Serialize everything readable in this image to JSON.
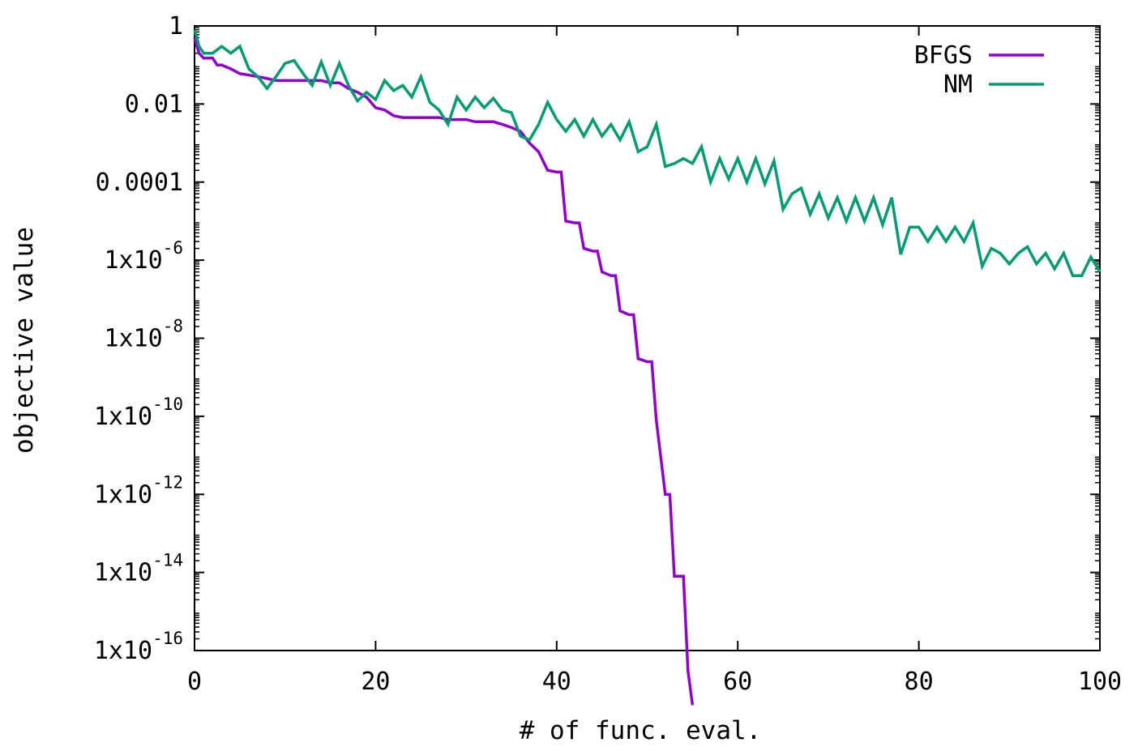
{
  "chart_data": {
    "type": "line",
    "xlabel": "# of func. eval.",
    "ylabel": "objective value",
    "xlim": [
      0,
      100
    ],
    "ylim_log10": [
      -16,
      0
    ],
    "yscale": "log",
    "grid": false,
    "legend_placement": "top-right",
    "x_ticks": [
      {
        "value": 0,
        "label": "0"
      },
      {
        "value": 20,
        "label": "20"
      },
      {
        "value": 40,
        "label": "40"
      },
      {
        "value": 60,
        "label": "60"
      },
      {
        "value": 80,
        "label": "80"
      },
      {
        "value": 100,
        "label": "100"
      }
    ],
    "y_ticks": [
      {
        "log10": 0,
        "label": "1",
        "base": "",
        "exp": ""
      },
      {
        "log10": -2,
        "label": "0.01",
        "base": "",
        "exp": ""
      },
      {
        "log10": -4,
        "label": "0.0001",
        "base": "",
        "exp": ""
      },
      {
        "log10": -6,
        "label": "",
        "base": "1x10",
        "exp": "-6"
      },
      {
        "log10": -8,
        "label": "",
        "base": "1x10",
        "exp": "-8"
      },
      {
        "log10": -10,
        "label": "",
        "base": "1x10",
        "exp": "-10"
      },
      {
        "log10": -12,
        "label": "",
        "base": "1x10",
        "exp": "-12"
      },
      {
        "log10": -14,
        "label": "",
        "base": "1x10",
        "exp": "-14"
      },
      {
        "log10": -16,
        "label": "",
        "base": "1x10",
        "exp": "-16"
      }
    ],
    "series": [
      {
        "name": "BFGS",
        "color": "#9400d3",
        "x": [
          0,
          0.5,
          1,
          2,
          2.5,
          3,
          4,
          5,
          6,
          7,
          8,
          9,
          10,
          11,
          12,
          13,
          14,
          15,
          16,
          17,
          18,
          19,
          20,
          21,
          22,
          23,
          24,
          25,
          26,
          27,
          28,
          29,
          30,
          31,
          32,
          33,
          34,
          35,
          36,
          37,
          38,
          39,
          40,
          40.5,
          41,
          42,
          42.5,
          43,
          44,
          44.5,
          45,
          46,
          46.5,
          47,
          48,
          48.5,
          49,
          50,
          50.5,
          51,
          52,
          52.5,
          53,
          54,
          54.5,
          55
        ],
        "y": [
          0.5,
          0.2,
          0.15,
          0.15,
          0.1,
          0.1,
          0.08,
          0.06,
          0.055,
          0.05,
          0.045,
          0.04,
          0.04,
          0.04,
          0.04,
          0.04,
          0.04,
          0.035,
          0.035,
          0.025,
          0.02,
          0.015,
          0.008,
          0.007,
          0.005,
          0.0045,
          0.0045,
          0.0045,
          0.0045,
          0.0045,
          0.004,
          0.004,
          0.004,
          0.0035,
          0.0035,
          0.0035,
          0.003,
          0.0025,
          0.002,
          0.001,
          0.0006,
          0.0002,
          0.00018,
          0.00018,
          1e-05,
          9e-06,
          9e-06,
          2e-06,
          1.7e-06,
          1.7e-06,
          5e-07,
          4e-07,
          4e-07,
          5e-08,
          4e-08,
          4e-08,
          3e-09,
          2.5e-09,
          2.5e-09,
          8e-11,
          1e-12,
          1e-12,
          8e-15,
          8e-15,
          3e-17,
          4e-18
        ]
      },
      {
        "name": "NM",
        "color": "#009e73",
        "x": [
          0,
          0.5,
          1,
          2,
          3,
          4,
          5,
          6,
          7,
          8,
          9,
          10,
          11,
          12,
          13,
          14,
          15,
          16,
          17,
          18,
          19,
          20,
          21,
          22,
          23,
          24,
          25,
          26,
          27,
          28,
          29,
          30,
          31,
          32,
          33,
          34,
          35,
          36,
          37,
          38,
          39,
          40,
          41,
          42,
          43,
          44,
          45,
          46,
          47,
          48,
          49,
          50,
          51,
          52,
          53,
          54,
          55,
          56,
          57,
          58,
          59,
          60,
          61,
          62,
          63,
          64,
          65,
          66,
          67,
          68,
          69,
          70,
          71,
          72,
          73,
          74,
          75,
          76,
          77,
          78,
          79,
          80,
          81,
          82,
          83,
          84,
          85,
          86,
          87,
          88,
          89,
          90,
          91,
          92,
          93,
          94,
          95,
          96,
          97,
          98,
          99,
          100
        ],
        "y": [
          0.8,
          0.3,
          0.2,
          0.2,
          0.3,
          0.2,
          0.3,
          0.08,
          0.05,
          0.025,
          0.05,
          0.11,
          0.13,
          0.06,
          0.03,
          0.12,
          0.03,
          0.11,
          0.03,
          0.012,
          0.02,
          0.013,
          0.04,
          0.022,
          0.03,
          0.015,
          0.05,
          0.011,
          0.007,
          0.003,
          0.015,
          0.007,
          0.015,
          0.008,
          0.014,
          0.007,
          0.006,
          0.0015,
          0.0012,
          0.003,
          0.011,
          0.004,
          0.002,
          0.004,
          0.0015,
          0.004,
          0.0015,
          0.003,
          0.0012,
          0.0035,
          0.0006,
          0.0008,
          0.003,
          0.00025,
          0.0003,
          0.0004,
          0.0003,
          0.0008,
          0.0001,
          0.0004,
          0.00012,
          0.0004,
          0.0001,
          0.0004,
          9e-05,
          0.00035,
          2e-05,
          5e-05,
          7e-05,
          1.5e-05,
          5e-05,
          1.2e-05,
          4e-05,
          1e-05,
          4e-05,
          1e-05,
          4e-05,
          8e-06,
          4e-05,
          1.4e-06,
          7e-06,
          7e-06,
          3e-06,
          7e-06,
          3e-06,
          7e-06,
          3e-06,
          9e-06,
          7e-07,
          2e-06,
          1.5e-06,
          8e-07,
          1.5e-06,
          2.2e-06,
          8e-07,
          1.5e-06,
          6e-07,
          1.5e-06,
          4e-07,
          4e-07,
          1.2e-06,
          5e-07
        ]
      }
    ]
  }
}
